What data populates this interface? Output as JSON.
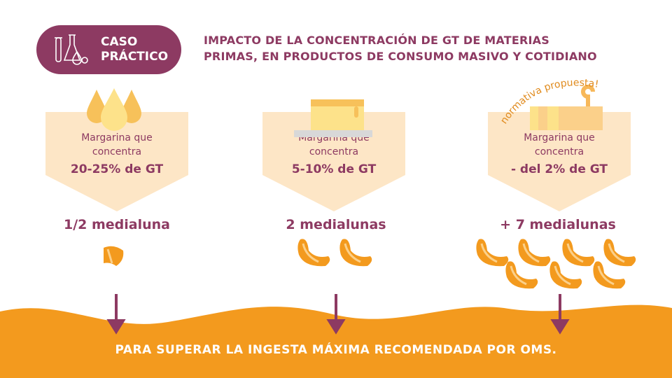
{
  "badge": {
    "line1": "CASO",
    "line2": "PRÁCTICO",
    "icon": "lab-flask-icon"
  },
  "title": {
    "line1": "IMPACTO DE LA CONCENTRACIÓN DE GT DE MATERIAS",
    "line2": "PRIMAS, EN PRODUCTOS DE CONSUMO MASIVO Y COTIDIANO"
  },
  "colors": {
    "purple": "#8d3a62",
    "orange": "#f39a1e",
    "panel": "#fde6c6"
  },
  "panels": [
    {
      "line1": "Margarina que",
      "line2": "concentra",
      "value": "20-25% de GT",
      "count": "1/2 medialuna",
      "croissants": 0.5,
      "icon": "oil-drops-icon"
    },
    {
      "line1": "Margarina que",
      "line2": "concentra",
      "value": "5-10% de GT",
      "count": "2 medialunas",
      "croissants": 2,
      "icon": "butter-block-icon"
    },
    {
      "line1": "Margarina que",
      "line2": "concentra",
      "value": "- del 2% de GT",
      "count": "+ 7 medialunas",
      "croissants": 7,
      "icon": "butter-wrap-icon",
      "note": "normativa propuesta!"
    }
  ],
  "footer": "PARA SUPERAR LA INGESTA MÁXIMA RECOMENDADA POR OMS."
}
